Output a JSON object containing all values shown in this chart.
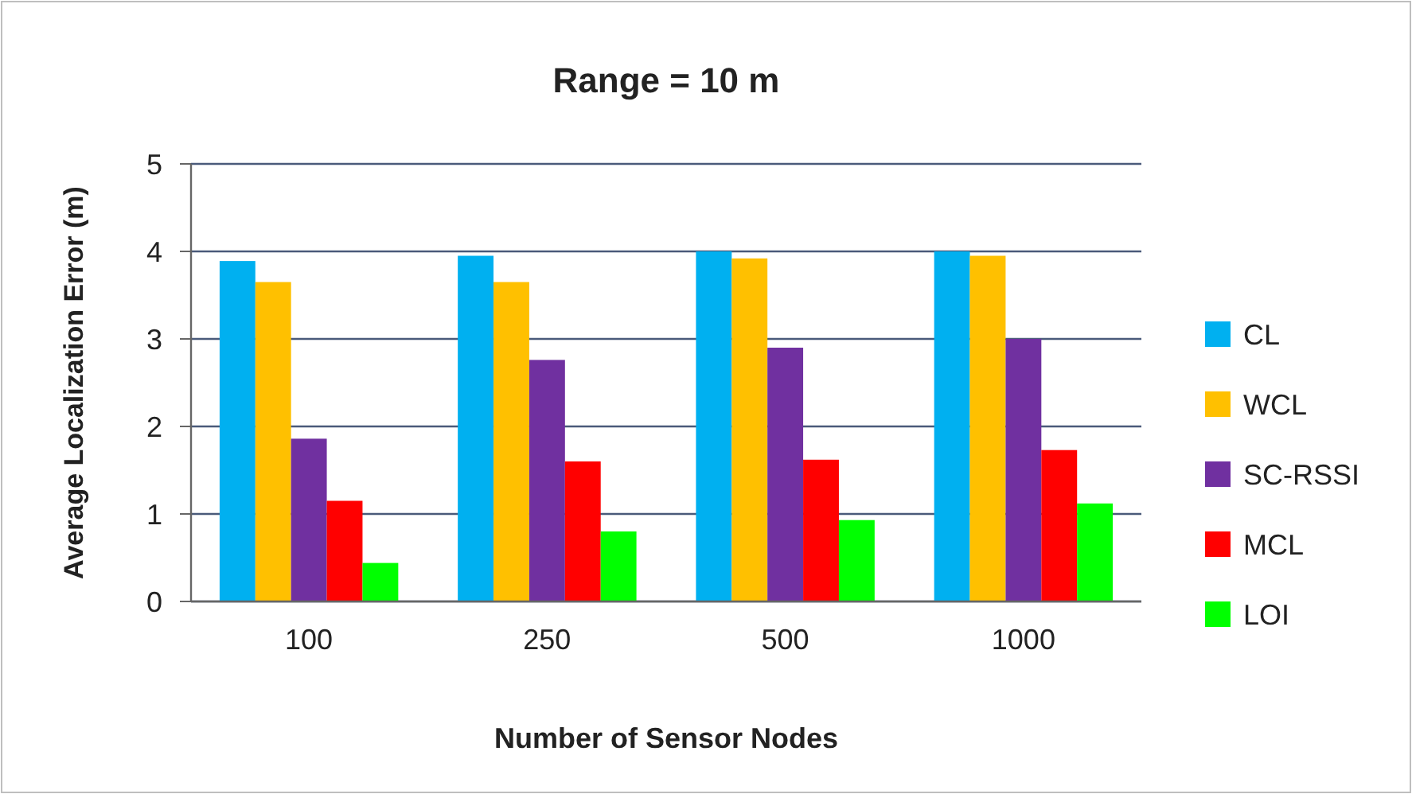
{
  "chart_data": {
    "type": "bar",
    "title": "Range = 10 m",
    "xlabel": "Number of Sensor Nodes",
    "ylabel": "Average Localization Error (m)",
    "categories": [
      "100",
      "250",
      "500",
      "1000"
    ],
    "series": [
      {
        "name": "CL",
        "color": "#00b0f0",
        "values": [
          3.89,
          3.95,
          4.0,
          4.0
        ]
      },
      {
        "name": "WCL",
        "color": "#ffc000",
        "values": [
          3.65,
          3.65,
          3.92,
          3.95
        ]
      },
      {
        "name": "SC-RSSI",
        "color": "#7030a0",
        "values": [
          1.86,
          2.76,
          2.9,
          3.0
        ]
      },
      {
        "name": "MCL",
        "color": "#ff0000",
        "values": [
          1.15,
          1.6,
          1.62,
          1.73
        ]
      },
      {
        "name": "LOI",
        "color": "#00ff00",
        "values": [
          0.44,
          0.8,
          0.93,
          1.12
        ]
      }
    ],
    "ylim": [
      0,
      5
    ],
    "yticks": [
      0,
      1,
      2,
      3,
      4,
      5
    ],
    "grid": "y",
    "legend": "right"
  }
}
